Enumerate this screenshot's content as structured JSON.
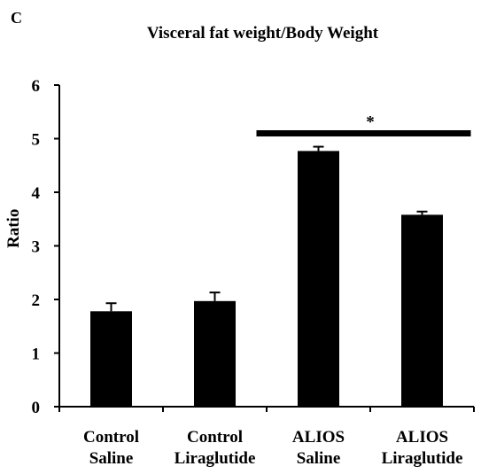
{
  "panel_letter": "C",
  "chart_data": {
    "type": "bar",
    "title": "Visceral fat weight/Body Weight",
    "xlabel": "",
    "ylabel": "Ratio",
    "ylim": [
      0,
      6
    ],
    "yticks": [
      "0",
      "1",
      "2",
      "3",
      "4",
      "5",
      "6"
    ],
    "categories": [
      [
        "Control",
        "Saline"
      ],
      [
        "Control",
        "Liraglutide"
      ],
      [
        "ALIOS",
        "Saline"
      ],
      [
        "ALIOS",
        "Liraglutide"
      ]
    ],
    "values": [
      1.78,
      1.97,
      4.77,
      3.58
    ],
    "errors": [
      0.15,
      0.16,
      0.08,
      0.06
    ],
    "bar_color": "#000000",
    "grid": false,
    "annotation": {
      "text": "*",
      "spans_categories": [
        2,
        3
      ]
    }
  }
}
